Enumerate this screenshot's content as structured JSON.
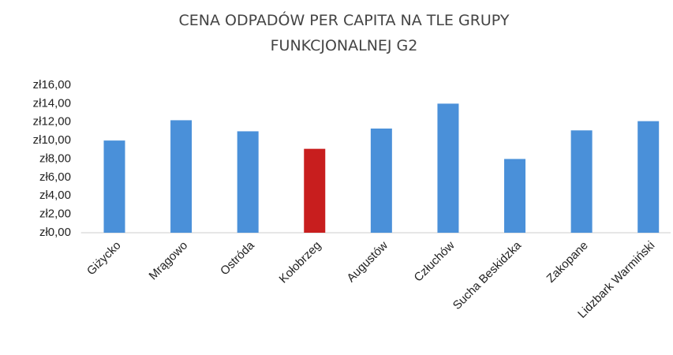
{
  "chart_data": {
    "type": "bar",
    "title": "CENA ODPADÓW PER CAPITA NA TLE GRUPY FUNKCJONALNEJ G2",
    "categories": [
      "Giżycko",
      "Mrągowo",
      "Ostróda",
      "Kołobrzeg",
      "Augustów",
      "Człuchów",
      "Sucha Beskidzka",
      "Zakopane",
      "Lidzbark Warmiński"
    ],
    "values": [
      10.0,
      12.2,
      11.0,
      9.1,
      11.3,
      14.0,
      8.0,
      11.1,
      12.1
    ],
    "colors": [
      "#4a90d9",
      "#4a90d9",
      "#4a90d9",
      "#c81e1e",
      "#4a90d9",
      "#4a90d9",
      "#4a90d9",
      "#4a90d9",
      "#4a90d9"
    ],
    "ylim": [
      0,
      16
    ],
    "yticks": [
      {
        "value": 0,
        "label": "zł0,00"
      },
      {
        "value": 2,
        "label": "zł2,00"
      },
      {
        "value": 4,
        "label": "zł4,00"
      },
      {
        "value": 6,
        "label": "zł6,00"
      },
      {
        "value": 8,
        "label": "zł8,00"
      },
      {
        "value": 10,
        "label": "zł10,00"
      },
      {
        "value": 12,
        "label": "zł12,00"
      },
      {
        "value": 14,
        "label": "zł14,00"
      },
      {
        "value": 16,
        "label": "zł16,00"
      }
    ],
    "grid": false
  }
}
